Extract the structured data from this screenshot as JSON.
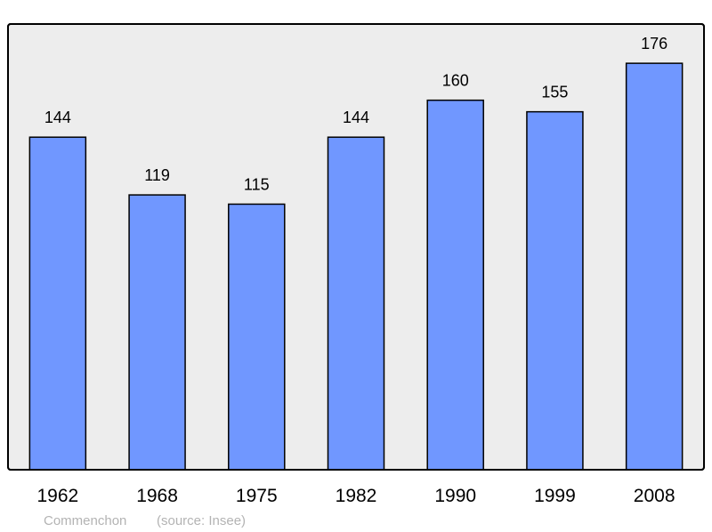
{
  "chart_data": {
    "type": "bar",
    "categories": [
      "1962",
      "1968",
      "1975",
      "1982",
      "1990",
      "1999",
      "2008"
    ],
    "values": [
      144,
      119,
      115,
      144,
      160,
      155,
      176
    ],
    "title": "",
    "xlabel": "",
    "ylabel": "",
    "ylim": [
      0,
      193
    ],
    "grid": false,
    "data_labels": true,
    "colors": {
      "bar": "#7097ff",
      "plot_background": "#ededed",
      "border": "#000000",
      "footer_text": "#b3b3b3"
    }
  },
  "footer": {
    "place": "Commenchon",
    "source": "(source: Insee)"
  }
}
